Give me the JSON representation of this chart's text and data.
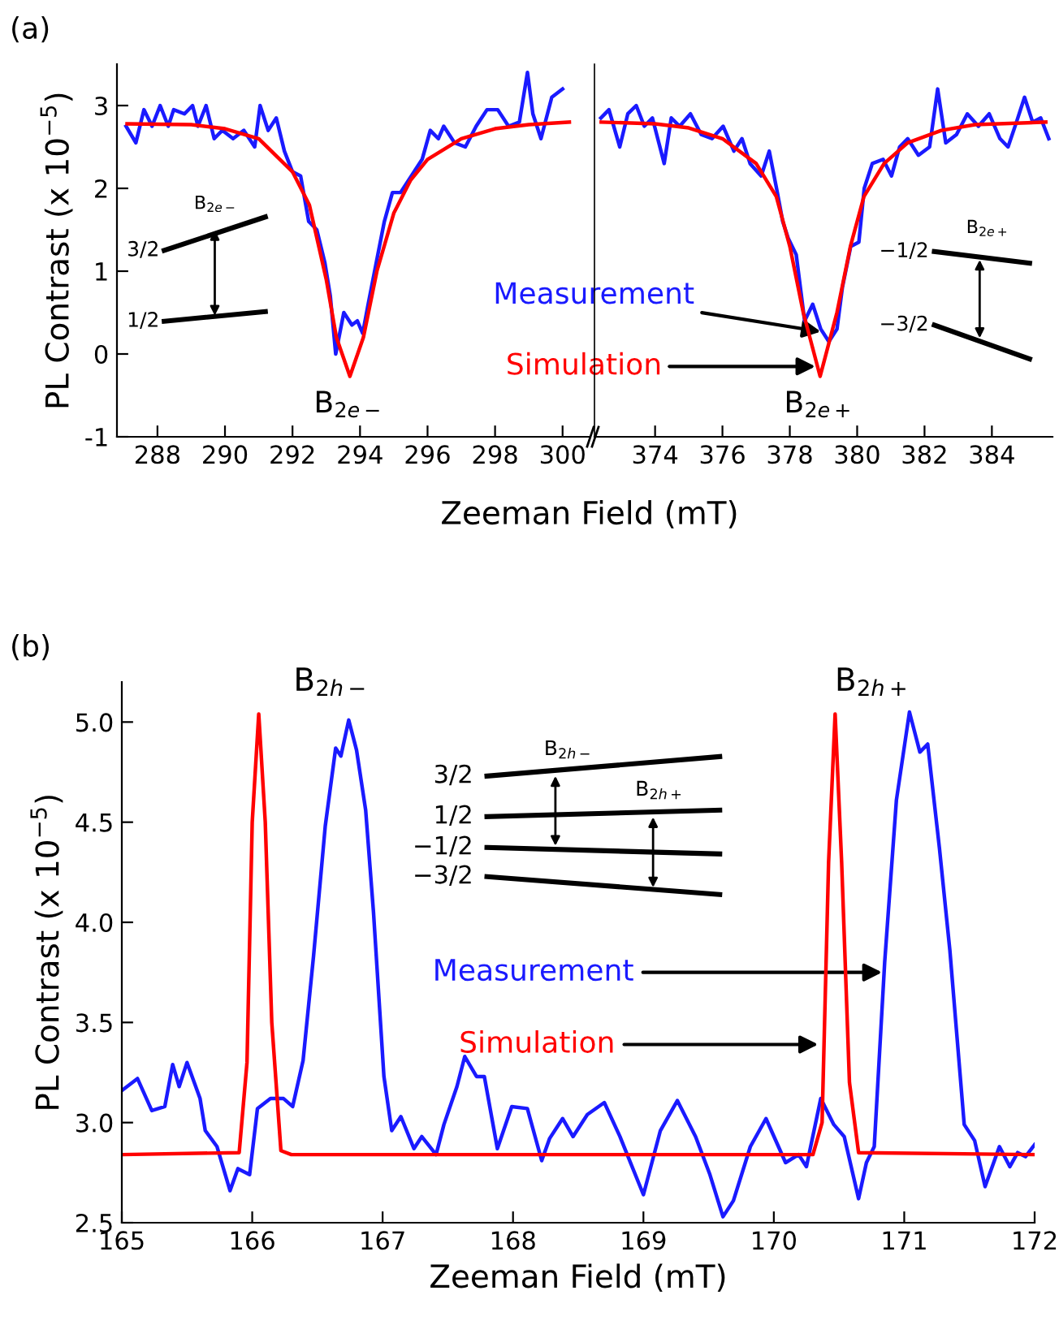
{
  "chart_data": [
    {
      "type": "line",
      "title": "(a)",
      "xlabel": "Zeeman Field (mT)",
      "ylabel": "PL Contrast (x 10$^{−5}$)",
      "xlim": [
        286.8,
        300.8
      ],
      "ylim": [
        -1,
        3.5
      ],
      "xticks": [
        288,
        290,
        292,
        294,
        296,
        298,
        300
      ],
      "yticks": [
        -1,
        0,
        1,
        2,
        3
      ],
      "series": [
        {
          "color": "#1a1aff",
          "x": [
            287.07,
            287.36,
            287.6,
            287.84,
            288.08,
            288.32,
            288.48,
            288.8,
            289.04,
            289.2,
            289.44,
            289.68,
            289.92,
            290.24,
            290.56,
            290.88,
            291.04,
            291.28,
            291.52,
            291.76,
            292.0,
            292.24,
            292.48,
            292.72,
            292.96,
            293.12,
            293.28,
            293.52,
            293.76,
            293.92,
            294.08,
            294.24,
            294.48,
            294.72,
            294.96,
            295.2,
            295.52,
            295.84,
            296.08,
            296.32,
            296.48,
            296.8,
            297.12,
            297.44,
            297.76,
            298.08,
            298.4,
            298.72,
            298.96,
            299.12,
            299.36,
            299.68,
            300.0
          ],
          "values": [
            2.75,
            2.55,
            2.95,
            2.75,
            3.0,
            2.75,
            2.95,
            2.9,
            3.0,
            2.75,
            3.0,
            2.6,
            2.7,
            2.6,
            2.7,
            2.5,
            3.0,
            2.7,
            2.85,
            2.45,
            2.2,
            2.15,
            1.6,
            1.5,
            1.1,
            0.7,
            0.0,
            0.5,
            0.35,
            0.4,
            0.25,
            0.6,
            1.1,
            1.6,
            1.95,
            1.95,
            2.15,
            2.35,
            2.7,
            2.6,
            2.75,
            2.55,
            2.5,
            2.75,
            2.95,
            2.95,
            2.75,
            2.8,
            3.4,
            2.9,
            2.6,
            3.1,
            3.2
          ]
        },
        {
          "color": "#ff0000",
          "x": [
            287.1,
            289,
            290,
            291,
            292,
            292.5,
            293,
            293.3,
            293.7,
            294.1,
            294.5,
            295,
            295.5,
            296,
            297,
            298,
            299,
            300.2
          ],
          "values": [
            2.78,
            2.77,
            2.72,
            2.6,
            2.2,
            1.8,
            0.9,
            0.2,
            -0.27,
            0.2,
            1.0,
            1.7,
            2.1,
            2.35,
            2.6,
            2.72,
            2.77,
            2.8
          ]
        }
      ],
      "annotations": [
        {
          "text": "B$_{2e−}$",
          "x": 293.7,
          "y": -0.27
        },
        "B$_{2e−}$",
        "3/2",
        "1/2"
      ]
    },
    {
      "type": "line",
      "xlim": [
        372.2,
        385.8
      ],
      "ylim": [
        -1,
        3.5
      ],
      "xticks": [
        374,
        376,
        378,
        380,
        382,
        384
      ],
      "yticks": [
        -1,
        0,
        1,
        2,
        3
      ],
      "tick_labels": "x",
      "series": [
        {
          "color": "#1a1aff",
          "x": [
            372.39,
            372.63,
            372.95,
            373.19,
            373.44,
            373.68,
            373.92,
            374.27,
            374.48,
            374.73,
            375.05,
            375.37,
            375.69,
            376.02,
            376.34,
            376.58,
            376.82,
            377.15,
            377.39,
            377.63,
            377.79,
            377.95,
            378.19,
            378.44,
            378.68,
            378.92,
            379.16,
            379.4,
            379.56,
            379.81,
            380.05,
            380.21,
            380.45,
            380.77,
            381.02,
            381.26,
            381.5,
            381.82,
            382.15,
            382.39,
            382.63,
            382.95,
            383.27,
            383.6,
            383.92,
            384.24,
            384.48,
            384.73,
            384.97,
            385.21,
            385.45,
            385.69
          ],
          "values": [
            2.85,
            2.95,
            2.5,
            2.9,
            3.0,
            2.75,
            2.85,
            2.3,
            2.85,
            2.75,
            2.9,
            2.65,
            2.6,
            2.75,
            2.45,
            2.6,
            2.3,
            2.15,
            2.45,
            1.95,
            1.6,
            1.4,
            1.2,
            0.4,
            0.6,
            0.3,
            0.15,
            0.3,
            0.8,
            1.3,
            1.35,
            2.0,
            2.3,
            2.35,
            2.15,
            2.5,
            2.6,
            2.4,
            2.5,
            3.2,
            2.55,
            2.65,
            2.9,
            2.75,
            2.9,
            2.6,
            2.5,
            2.8,
            3.1,
            2.8,
            2.85,
            2.6
          ]
        },
        {
          "color": "#ff0000",
          "x": [
            372.4,
            374,
            375,
            376,
            377,
            377.6,
            378,
            378.4,
            378.9,
            379.4,
            379.8,
            380.2,
            380.8,
            381.5,
            382.5,
            383.5,
            385.6
          ],
          "values": [
            2.8,
            2.78,
            2.73,
            2.6,
            2.3,
            1.9,
            1.3,
            0.5,
            -0.27,
            0.5,
            1.3,
            1.9,
            2.3,
            2.55,
            2.7,
            2.77,
            2.8
          ]
        }
      ],
      "annotations": [
        {
          "text": "Measurement",
          "x": 378.92,
          "y": 0.27
        },
        {
          "text": "Simulation",
          "x": 378.76,
          "y": -0.15
        },
        {
          "text": "B$_{2e+}$",
          "x": 378.9,
          "y": -0.27
        },
        "B$_{2e+}$",
        "−1/2",
        "−3/2"
      ]
    },
    {
      "type": "line",
      "title": "(b)",
      "xlabel": "Zeeman Field (mT)",
      "ylabel": "PL Contrast (x 10$^{−5}$)",
      "xlim": [
        165,
        172
      ],
      "ylim": [
        2.5,
        5.2
      ],
      "xticks": [
        165,
        166,
        167,
        168,
        169,
        170,
        171,
        172
      ],
      "yticks": [
        2.5,
        {
          "value": 3,
          "label": "3.0"
        },
        3.5,
        {
          "value": 4,
          "label": "4.0"
        },
        4.5,
        {
          "value": 5,
          "label": "5.0"
        }
      ],
      "series": [
        {
          "color": "#1a1aff",
          "x": [
            165.0,
            165.12,
            165.23,
            165.33,
            165.39,
            165.44,
            165.5,
            165.6,
            165.64,
            165.73,
            165.83,
            165.89,
            165.98,
            166.04,
            166.14,
            166.24,
            166.31,
            166.39,
            166.47,
            166.56,
            166.64,
            166.68,
            166.74,
            166.8,
            166.87,
            166.93,
            167.01,
            167.07,
            167.14,
            167.24,
            167.3,
            167.41,
            167.47,
            167.57,
            167.63,
            167.72,
            167.78,
            167.88,
            167.99,
            168.11,
            168.22,
            168.28,
            168.38,
            168.46,
            168.57,
            168.7,
            168.82,
            169.0,
            169.13,
            169.26,
            169.4,
            169.51,
            169.61,
            169.69,
            169.82,
            169.94,
            170.09,
            170.19,
            170.25,
            170.36,
            170.46,
            170.54,
            170.65,
            170.71,
            170.77,
            170.85,
            170.94,
            171.04,
            171.12,
            171.18,
            171.27,
            171.35,
            171.46,
            171.54,
            171.62,
            171.73,
            171.81,
            171.87,
            171.93,
            172.0
          ],
          "values": [
            3.16,
            3.22,
            3.06,
            3.08,
            3.29,
            3.18,
            3.3,
            3.12,
            2.96,
            2.88,
            2.66,
            2.77,
            2.74,
            3.07,
            3.12,
            3.12,
            3.08,
            3.31,
            3.83,
            4.48,
            4.87,
            4.83,
            5.01,
            4.86,
            4.56,
            4.05,
            3.23,
            2.96,
            3.03,
            2.87,
            2.93,
            2.84,
            2.99,
            3.18,
            3.33,
            3.23,
            3.23,
            2.87,
            3.08,
            3.07,
            2.81,
            2.92,
            3.02,
            2.93,
            3.04,
            3.1,
            2.93,
            2.64,
            2.96,
            3.11,
            2.93,
            2.74,
            2.53,
            2.61,
            2.88,
            3.02,
            2.8,
            2.84,
            2.78,
            3.12,
            2.99,
            2.93,
            2.62,
            2.8,
            2.88,
            3.8,
            4.61,
            5.05,
            4.85,
            4.89,
            4.37,
            3.86,
            2.99,
            2.91,
            2.68,
            2.88,
            2.78,
            2.85,
            2.83,
            2.89
          ]
        },
        {
          "color": "#ff0000",
          "x": [
            165,
            165.9,
            165.96,
            166.0,
            166.05,
            166.1,
            166.15,
            166.22,
            166.3,
            170.3,
            170.37,
            170.42,
            170.47,
            170.52,
            170.58,
            170.65,
            172
          ],
          "values": [
            2.84,
            2.85,
            3.3,
            4.5,
            5.04,
            4.5,
            3.5,
            2.86,
            2.84,
            2.84,
            3.0,
            4.3,
            5.04,
            4.3,
            3.2,
            2.85,
            2.84
          ]
        }
      ],
      "annotations": [
        {
          "text": "Measurement",
          "x": 170.83,
          "y": 3.75
        },
        {
          "text": "Simulation",
          "x": 170.34,
          "y": 3.39
        },
        "B$_{2h−}$",
        "B$_{2h+}$",
        "B$_{2h−}$",
        "B$_{2h+}$",
        "3/2",
        "1/2",
        "−1/2",
        "−3/2"
      ]
    }
  ]
}
